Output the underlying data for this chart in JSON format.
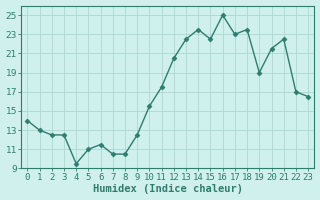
{
  "x": [
    0,
    1,
    2,
    3,
    4,
    5,
    6,
    7,
    8,
    9,
    10,
    11,
    12,
    13,
    14,
    15,
    16,
    17,
    18,
    19,
    20,
    21,
    22,
    23
  ],
  "y": [
    14.0,
    13.0,
    12.5,
    12.5,
    9.5,
    11.0,
    11.5,
    10.5,
    10.5,
    12.5,
    15.5,
    17.5,
    20.5,
    22.5,
    23.5,
    22.5,
    25.0,
    23.0,
    23.5,
    19.0,
    21.5,
    22.5,
    17.0,
    16.5
  ],
  "line_color": "#2e7d6e",
  "marker": "D",
  "marker_size": 2.5,
  "bg_color": "#cff0ec",
  "grid_color": "#aad8d3",
  "xlabel": "Humidex (Indice chaleur)",
  "ylabel": "",
  "xlim": [
    -0.5,
    23.5
  ],
  "ylim": [
    9,
    26
  ],
  "yticks": [
    9,
    11,
    13,
    15,
    17,
    19,
    21,
    23,
    25
  ],
  "xtick_labels": [
    "0",
    "1",
    "2",
    "3",
    "4",
    "5",
    "6",
    "7",
    "8",
    "9",
    "10",
    "11",
    "12",
    "13",
    "14",
    "15",
    "16",
    "17",
    "18",
    "19",
    "20",
    "21",
    "22",
    "23"
  ],
  "xlabel_fontsize": 7.5,
  "tick_fontsize": 6.5
}
